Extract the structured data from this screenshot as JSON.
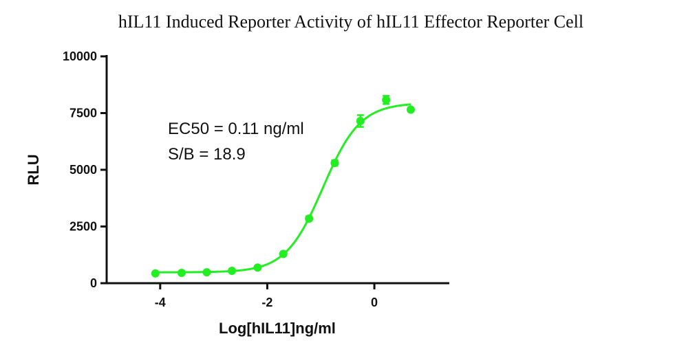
{
  "chart_data": {
    "type": "scatter",
    "title": "hIL11 Induced Reporter Activity of hIL11 Effector Reporter Cell",
    "xlabel": "Log[hIL11]ng/ml",
    "ylabel": "RLU",
    "xlim": [
      -5,
      1.4
    ],
    "ylim": [
      0,
      10000
    ],
    "xticks": [
      -4,
      -2,
      0
    ],
    "yticks": [
      0,
      2500,
      5000,
      7500,
      10000
    ],
    "grid": false,
    "legend": "none",
    "annotations": [
      "EC50 =  0.11 ng/ml",
      "S/B = 18.9"
    ],
    "series": [
      {
        "x": [
          -4.09,
          -3.6,
          -3.13,
          -2.66,
          -2.18,
          -1.7,
          -1.22,
          -0.74,
          -0.26,
          0.22,
          0.68
        ],
        "y": [
          430,
          455,
          480,
          545,
          690,
          1290,
          2850,
          5300,
          7150,
          8080,
          7650
        ],
        "error": [
          40,
          40,
          40,
          40,
          50,
          70,
          90,
          120,
          260,
          180,
          80
        ]
      }
    ],
    "fit_curve": {
      "type": "4PL",
      "bottom": 480,
      "top": 7950,
      "log_ec50": -0.96,
      "hill": 1.25
    },
    "colors": {
      "series": "#22ee22",
      "axis": "#111111"
    }
  }
}
